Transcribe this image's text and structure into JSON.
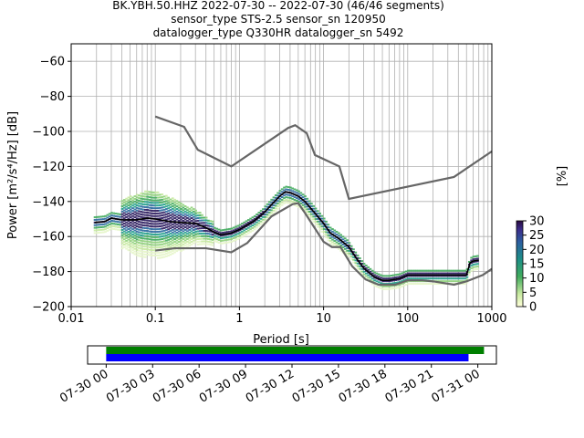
{
  "header": {
    "line1": "BK.YBH.50.HHZ   2022-07-30 -- 2022-07-30  (46/46 segments)",
    "line2": "sensor_type STS-2.5 sensor_sn 120950",
    "line3": "datalogger_type Q330HR datalogger_sn 5492"
  },
  "colors": {
    "noise_model": "#666666",
    "mode_line": "#000000",
    "coverage_green": "#008000",
    "coverage_blue": "#0000ff",
    "grid": "#b0b0b0"
  },
  "chart_data": [
    {
      "type": "heatmap",
      "title": "",
      "xlabel": "Period [s]",
      "ylabel": "Power [m²/s⁴/Hz] [dB]",
      "x_scale": "log",
      "xlim": [
        0.01,
        1000
      ],
      "ylim": [
        -200,
        -50
      ],
      "x_ticks": [
        0.01,
        0.1,
        1,
        10,
        100,
        1000
      ],
      "x_tick_labels": [
        "0.01",
        "0.1",
        "1",
        "10",
        "100",
        "1000"
      ],
      "y_ticks": [
        -200,
        -180,
        -160,
        -140,
        -120,
        -100,
        -80,
        -60
      ],
      "y_tick_labels": [
        "−200",
        "−180",
        "−160",
        "−140",
        "−120",
        "−100",
        "−80",
        "−60"
      ],
      "grid": true,
      "colorbar": {
        "label": "[%]",
        "range": [
          0,
          30
        ],
        "ticks": [
          0,
          5,
          10,
          15,
          20,
          25,
          30
        ],
        "tick_labels": [
          "0",
          "5",
          "10",
          "15",
          "20",
          "25",
          "30"
        ]
      },
      "series": [
        {
          "x": [
            0.1,
            0.22,
            0.32,
            0.8,
            3.8,
            4.6,
            6.3,
            7.9,
            15.4,
            20,
            354.8,
            1000
          ],
          "y": [
            -91.5,
            -97.4,
            -110.5,
            -120,
            -98,
            -96.5,
            -101,
            -113.5,
            -120,
            -138.5,
            -126,
            -111.4
          ]
        },
        {
          "x": [
            0.1,
            0.17,
            0.4,
            0.8,
            1.24,
            2.4,
            4.3,
            5,
            6,
            10,
            12.6,
            15.9,
            21.9,
            31.6,
            45,
            70.8,
            100,
            150,
            200,
            354.8,
            500,
            780,
            1000
          ],
          "y": [
            -168,
            -166.7,
            -166.7,
            -169,
            -163.7,
            -148.5,
            -141.5,
            -141,
            -146.5,
            -163,
            -166,
            -166,
            -177,
            -184.5,
            -187.5,
            -187.5,
            -185,
            -185,
            -185.6,
            -187.5,
            -185.6,
            -182,
            -178.5
          ]
        },
        {
          "x": [
            0.019,
            0.025,
            0.03,
            0.04,
            0.06,
            0.08,
            0.1,
            0.15,
            0.2,
            0.3,
            0.4,
            0.5,
            0.6,
            0.8,
            1,
            1.5,
            2,
            2.5,
            3,
            3.5,
            4,
            5,
            6,
            8,
            10,
            12,
            15,
            20,
            25,
            30,
            40,
            50,
            60,
            80,
            100,
            150,
            200,
            300,
            400,
            500,
            550,
            600,
            700
          ],
          "y": [
            -152,
            -151.5,
            -149.5,
            -150.5,
            -150.5,
            -149.5,
            -150,
            -151.5,
            -152,
            -152.5,
            -155,
            -157.5,
            -159,
            -158,
            -156,
            -151,
            -146,
            -141,
            -137,
            -134.5,
            -135,
            -137,
            -140,
            -147,
            -152.5,
            -158,
            -161,
            -166,
            -173,
            -178,
            -183,
            -185,
            -185,
            -184,
            -182,
            -182,
            -182,
            -182,
            -182,
            -182,
            -175,
            -174,
            -173.5
          ]
        }
      ]
    },
    {
      "type": "bar",
      "title": "",
      "xlabel": "",
      "ylabel": "",
      "x_tick_labels": [
        "07-30 00",
        "07-30 03",
        "07-30 06",
        "07-30 09",
        "07-30 12",
        "07-30 15",
        "07-30 18",
        "07-30 21",
        "07-31 00"
      ],
      "x_range_hours": [
        -1.2,
        25.2
      ],
      "series": [
        {
          "start_hours": 0,
          "end_hours": 24.4
        },
        {
          "start_hours": 0,
          "end_hours": 23.4
        }
      ]
    }
  ]
}
